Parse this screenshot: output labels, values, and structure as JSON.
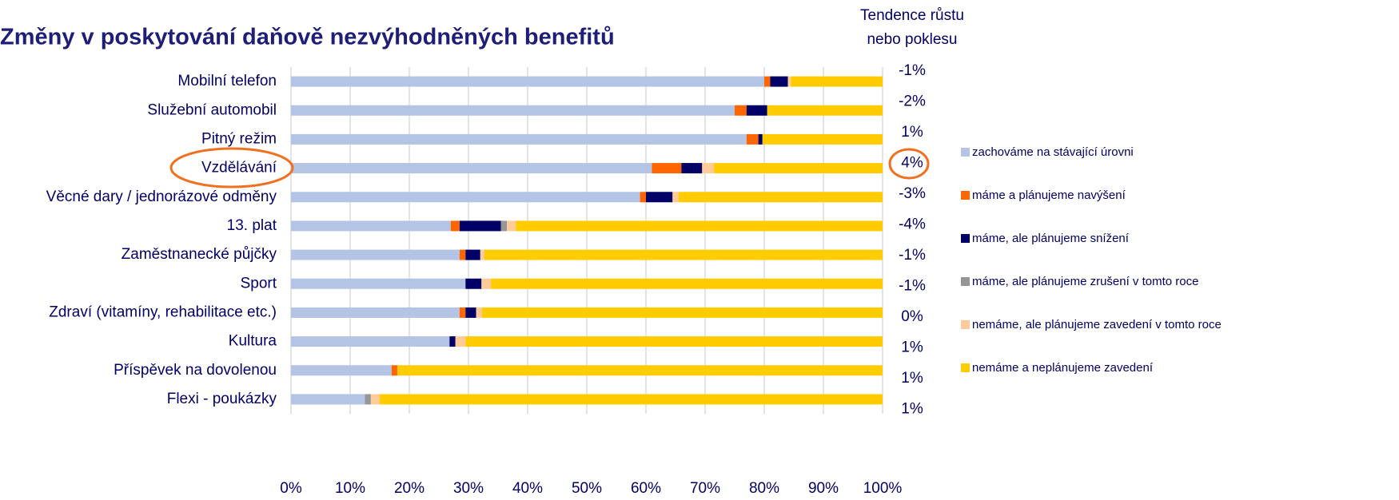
{
  "chart_data": {
    "type": "stacked-barh",
    "title": "Změny v poskytování daňově nezvýhodněných benefitů",
    "categories": [
      "Mobilní telefon",
      "Služební automobil",
      "Pitný režim",
      "Vzdělávání",
      "Věcné dary / jednorázové odměny",
      "13. plat",
      "Zaměstnanecké půjčky",
      "Sport",
      "Zdraví (vitamíny, rehabilitace etc.)",
      "Kultura",
      "Příspěvek na dovolenou",
      "Flexi - poukázky"
    ],
    "series": [
      {
        "name": "zachováme na stávající úrovni",
        "color": "#b4c4e4",
        "values": [
          80,
          75,
          77,
          61,
          59,
          27,
          28.5,
          29.5,
          28.5,
          26.8,
          17,
          12.5
        ]
      },
      {
        "name": "máme a plánujeme navýšení",
        "color": "#ff6600",
        "values": [
          1,
          2,
          2,
          5,
          1,
          1.5,
          1,
          0,
          1,
          0,
          1,
          0
        ]
      },
      {
        "name": "máme, ale plánujeme snížení",
        "color": "#000066",
        "values": [
          3,
          3.5,
          0.7,
          3.5,
          4.5,
          7,
          2.5,
          2.7,
          1.8,
          1,
          0,
          0
        ]
      },
      {
        "name": "máme, ale plánujeme zrušení v tomto roce",
        "color": "#969696",
        "values": [
          0,
          0,
          0,
          0,
          0,
          1,
          0,
          0,
          0,
          0,
          0,
          1
        ]
      },
      {
        "name": "nemáme, ale plánujeme zavedení v tomto roce",
        "color": "#ffcc99",
        "values": [
          0.5,
          0,
          0,
          2,
          1,
          1.5,
          0.7,
          1.6,
          1,
          1.7,
          0,
          1.5
        ]
      },
      {
        "name": "nemáme a neplánujeme zavedení",
        "color": "#ffcc00",
        "values": [
          15.5,
          19.5,
          20.3,
          28.5,
          34.5,
          62,
          67.3,
          66.2,
          67.7,
          70.5,
          82,
          85
        ]
      }
    ],
    "xlim": [
      0,
      100
    ],
    "xticks": [
      {
        "value": 0,
        "label": "0%"
      },
      {
        "value": 10,
        "label": "10%"
      },
      {
        "value": 20,
        "label": "20%"
      },
      {
        "value": 30,
        "label": "30%"
      },
      {
        "value": 40,
        "label": "40%"
      },
      {
        "value": 50,
        "label": "50%"
      },
      {
        "value": 60,
        "label": "60%"
      },
      {
        "value": 70,
        "label": "70%"
      },
      {
        "value": 80,
        "label": "80%"
      },
      {
        "value": 90,
        "label": "90%"
      },
      {
        "value": 100,
        "label": "100%"
      }
    ],
    "grid": true,
    "trend_header": [
      "Tendence růstu",
      "nebo poklesu"
    ],
    "trend_labels": [
      "-1%",
      "-2%",
      "1%",
      "4%",
      "-3%",
      "-4%",
      "-1%",
      "-1%",
      "0%",
      "1%",
      "1%",
      "1%"
    ]
  }
}
